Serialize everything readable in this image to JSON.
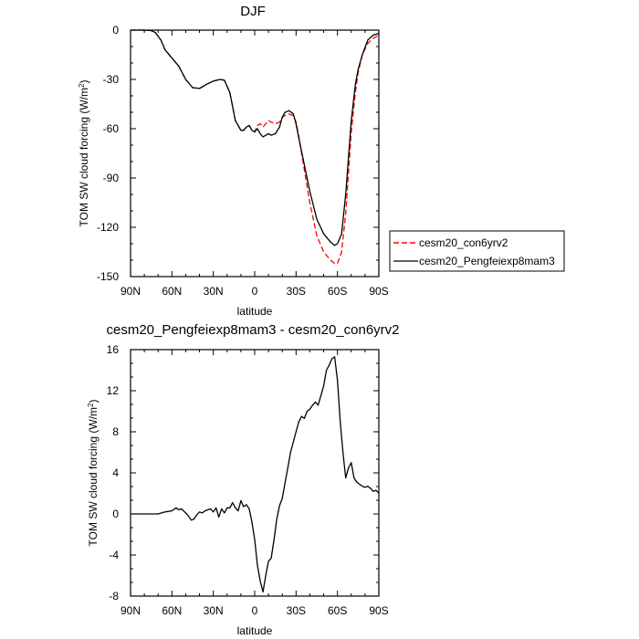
{
  "chart_data": [
    {
      "type": "line",
      "title": "DJF",
      "xlabel": "latitude",
      "ylabel": "TOM SW cloud forcing (W/m",
      "ylabel_sup": "2",
      "ylabel_end": ")",
      "xlim": [
        90,
        -90
      ],
      "ylim": [
        -150,
        0
      ],
      "xticks": [
        90,
        60,
        30,
        0,
        -30,
        -60,
        -90
      ],
      "xtick_labels": [
        "90N",
        "60N",
        "30N",
        "0",
        "30S",
        "60S",
        "90S"
      ],
      "yticks": [
        0,
        -30,
        -60,
        -90,
        -120,
        -150
      ],
      "ytick_labels": [
        "0",
        "-30",
        "-60",
        "-90",
        "-120",
        "-150"
      ],
      "legend_position": "right",
      "series": [
        {
          "name": "cesm20_con6yrv2",
          "color": "#ff0000",
          "dash": "dashed",
          "x": [
            90,
            80,
            75,
            72,
            68,
            65,
            60,
            55,
            50,
            45,
            40,
            35,
            30,
            25,
            22,
            18,
            14,
            10,
            8,
            6,
            4,
            2,
            0,
            -2,
            -4,
            -6,
            -8,
            -10,
            -12,
            -15,
            -18,
            -20,
            -22,
            -25,
            -28,
            -30,
            -32,
            -35,
            -40,
            -45,
            -50,
            -55,
            -58,
            -60,
            -63,
            -66,
            -70,
            -73,
            -75,
            -78,
            -82,
            -86,
            -90
          ],
          "y": [
            0,
            0,
            -0.3,
            -1.5,
            -6,
            -12,
            -17,
            -22,
            -30,
            -35,
            -35.5,
            -33,
            -31,
            -30,
            -30.5,
            -38,
            -55,
            -61,
            -61,
            -59,
            -58,
            -61,
            -62,
            -58,
            -57,
            -59,
            -57,
            -55,
            -56,
            -57,
            -56,
            -53,
            -52,
            -51,
            -52,
            -56,
            -65,
            -80,
            -105,
            -125,
            -135,
            -140,
            -142,
            -142,
            -135,
            -112,
            -62,
            -38,
            -26,
            -15,
            -8,
            -5,
            -3
          ]
        },
        {
          "name": "cesm20_Pengfeiexp8mam3",
          "color": "#000000",
          "dash": "solid",
          "x": [
            90,
            80,
            75,
            72,
            68,
            65,
            60,
            55,
            50,
            45,
            40,
            35,
            30,
            25,
            22,
            18,
            14,
            10,
            8,
            6,
            4,
            2,
            0,
            -2,
            -4,
            -6,
            -8,
            -10,
            -12,
            -15,
            -18,
            -20,
            -22,
            -25,
            -28,
            -30,
            -32,
            -35,
            -40,
            -45,
            -50,
            -55,
            -58,
            -60,
            -63,
            -66,
            -70,
            -73,
            -75,
            -78,
            -82,
            -86,
            -90
          ],
          "y": [
            0,
            0,
            -0.3,
            -1.5,
            -6,
            -12,
            -17,
            -22,
            -30,
            -35,
            -35.5,
            -33,
            -31,
            -30,
            -30.5,
            -38,
            -55,
            -61,
            -61,
            -59,
            -58,
            -61,
            -62,
            -60,
            -63,
            -65,
            -64,
            -63,
            -64,
            -63,
            -59,
            -53,
            -50,
            -49,
            -51,
            -57,
            -66,
            -78,
            -98,
            -115,
            -124,
            -129,
            -131,
            -130,
            -124,
            -100,
            -55,
            -33,
            -24,
            -15,
            -6,
            -3,
            -2
          ]
        }
      ]
    },
    {
      "type": "line",
      "title": "cesm20_Pengfeiexp8mam3 - cesm20_con6yrv2",
      "xlabel": "latitude",
      "ylabel": "TOM SW cloud forcing (W/m",
      "ylabel_sup": "2",
      "ylabel_end": ")",
      "xlim": [
        90,
        -90
      ],
      "ylim": [
        -8,
        16
      ],
      "xticks": [
        90,
        60,
        30,
        0,
        -30,
        -60,
        -90
      ],
      "xtick_labels": [
        "90N",
        "60N",
        "30N",
        "0",
        "30S",
        "60S",
        "90S"
      ],
      "yticks": [
        16,
        12,
        8,
        4,
        0,
        -4,
        -8
      ],
      "ytick_labels": [
        "16",
        "12",
        "8",
        "4",
        "0",
        "-4",
        "-8"
      ],
      "series": [
        {
          "name": "",
          "color": "#000000",
          "dash": "solid",
          "x": [
            90,
            80,
            70,
            65,
            60,
            57,
            55,
            53,
            50,
            48,
            46,
            44,
            42,
            40,
            38,
            36,
            34,
            32,
            30,
            28,
            26,
            24,
            22,
            20,
            18,
            16,
            14,
            12,
            10,
            8,
            6,
            4,
            2,
            0,
            -2,
            -4,
            -6,
            -8,
            -10,
            -12,
            -14,
            -16,
            -18,
            -20,
            -22,
            -24,
            -26,
            -28,
            -30,
            -32,
            -34,
            -36,
            -38,
            -40,
            -42,
            -44,
            -46,
            -48,
            -50,
            -52,
            -54,
            -56,
            -58,
            -60,
            -62,
            -64,
            -66,
            -68,
            -70,
            -72,
            -74,
            -76,
            -78,
            -80,
            -82,
            -84,
            -86,
            -88,
            -90
          ],
          "y": [
            0,
            0,
            0,
            0.2,
            0.3,
            0.6,
            0.4,
            0.5,
            0.1,
            -0.2,
            -0.6,
            -0.5,
            -0.1,
            0.2,
            0.1,
            0.3,
            0.4,
            0.5,
            0.2,
            0.6,
            -0.3,
            0.5,
            0.1,
            0.6,
            0.6,
            1.1,
            0.6,
            0.3,
            1.3,
            0.7,
            0.9,
            0.5,
            -0.8,
            -2.5,
            -5.0,
            -6.5,
            -7.6,
            -6.0,
            -4.6,
            -4.3,
            -2.5,
            -0.5,
            0.8,
            1.5,
            3.0,
            4.5,
            6.0,
            7.0,
            8.0,
            9.0,
            9.5,
            9.3,
            10.0,
            10.2,
            10.6,
            10.9,
            10.6,
            11.5,
            12.5,
            14.0,
            14.5,
            15.1,
            15.3,
            13.0,
            9.0,
            6.0,
            3.5,
            4.5,
            5.0,
            3.5,
            3.1,
            2.9,
            2.7,
            2.6,
            2.7,
            2.5,
            2.2,
            2.3,
            2.0
          ]
        }
      ]
    }
  ]
}
